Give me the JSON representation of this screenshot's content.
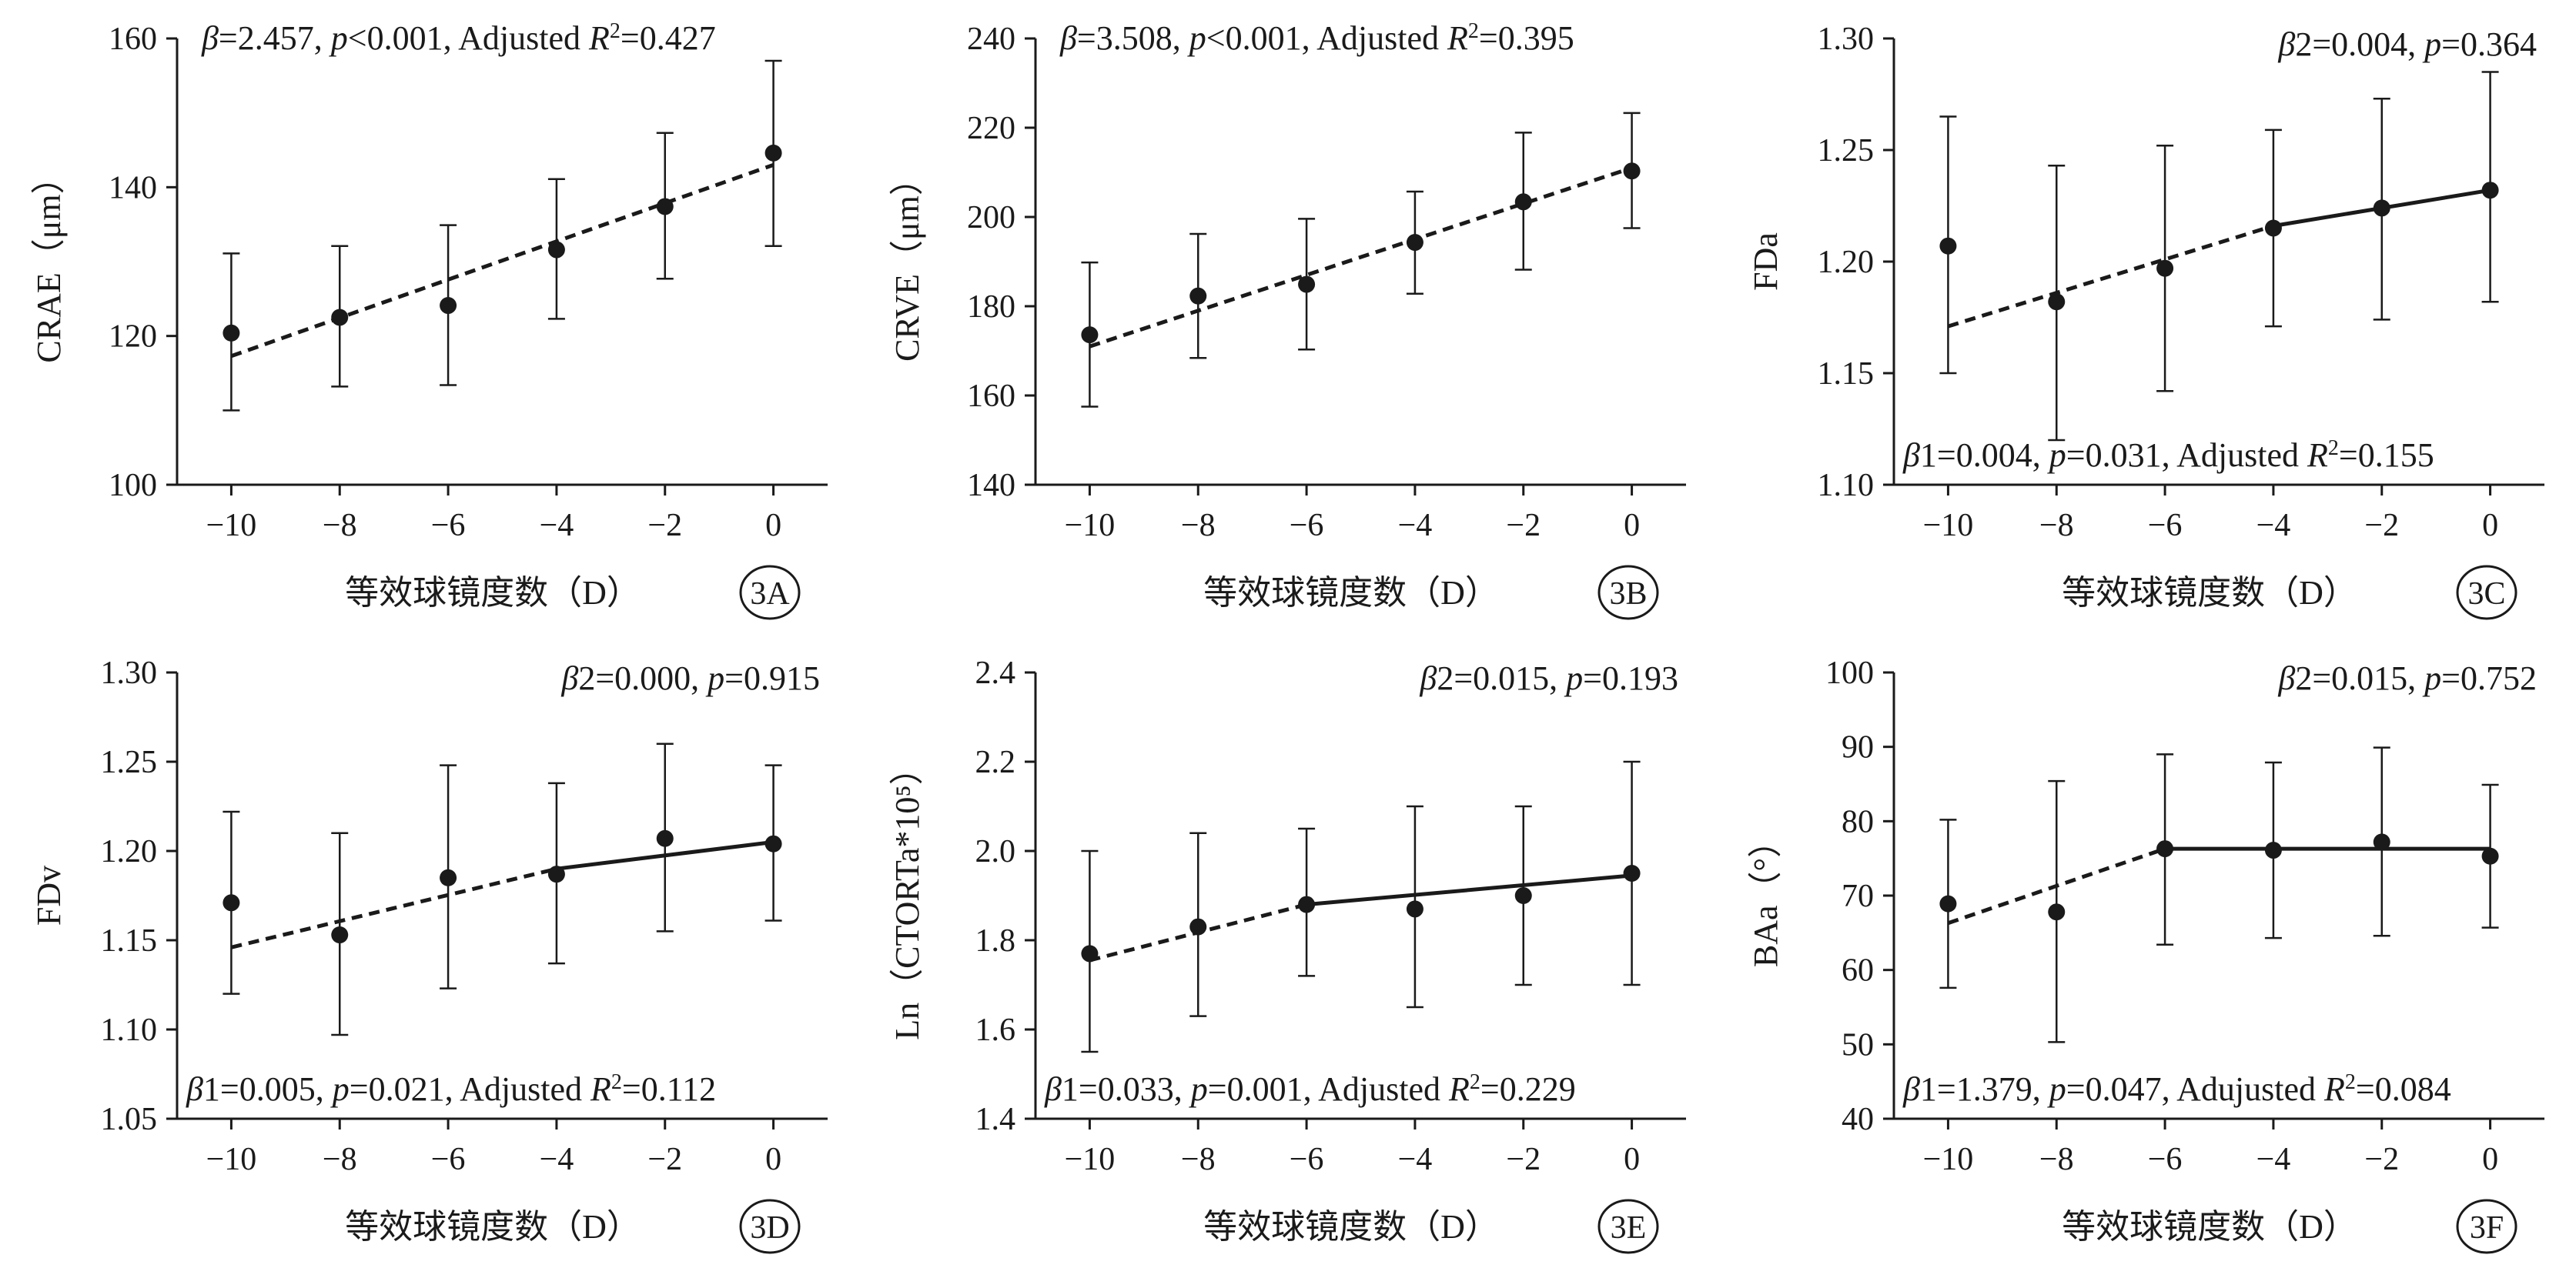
{
  "figure": {
    "background": "#ffffff",
    "ink_color": "#1a1a1a"
  },
  "chart_data": [
    {
      "id": "3A",
      "type": "scatter",
      "title": "",
      "xlabel": "等效球镜度数（D）",
      "ylabel": "CRAE（μm）",
      "xlim": [
        -11,
        1
      ],
      "ylim": [
        100,
        160
      ],
      "xticks": [
        -10,
        -8,
        -6,
        -4,
        -2,
        0
      ],
      "xtick_labels": [
        "−10",
        "−8",
        "−6",
        "−4",
        "−2",
        "0"
      ],
      "yticks": [
        100,
        120,
        140,
        160
      ],
      "ytick_labels": [
        "100",
        "120",
        "140",
        "160"
      ],
      "grid": false,
      "series": [
        {
          "x": [
            -10,
            -8,
            -6,
            -4,
            -2,
            0
          ],
          "y": [
            120.4,
            122.5,
            124.1,
            131.6,
            137.4,
            144.6
          ],
          "err_low": [
            110.0,
            113.2,
            113.4,
            122.3,
            127.7,
            132.1
          ],
          "err_high": [
            131.1,
            132.1,
            134.9,
            141.1,
            147.3,
            157.0
          ]
        }
      ],
      "fits": [
        {
          "style": "dashed",
          "x": [
            -10,
            0
          ],
          "y": [
            117.3,
            143.0
          ]
        }
      ],
      "annotations": [
        {
          "text": "β=2.457, p<0.001, Adjusted R²=0.427",
          "position": "top-left"
        }
      ]
    },
    {
      "id": "3B",
      "type": "scatter",
      "title": "",
      "xlabel": "等效球镜度数（D）",
      "ylabel": "CRVE（μm）",
      "xlim": [
        -11,
        1
      ],
      "ylim": [
        140,
        240
      ],
      "xticks": [
        -10,
        -8,
        -6,
        -4,
        -2,
        0
      ],
      "xtick_labels": [
        "−10",
        "−8",
        "−6",
        "−4",
        "−2",
        "0"
      ],
      "yticks": [
        140,
        160,
        180,
        200,
        220,
        240
      ],
      "ytick_labels": [
        "140",
        "160",
        "180",
        "200",
        "220",
        "240"
      ],
      "grid": false,
      "series": [
        {
          "x": [
            -10,
            -8,
            -6,
            -4,
            -2,
            0
          ],
          "y": [
            173.6,
            182.3,
            184.9,
            194.3,
            203.4,
            210.3
          ],
          "err_low": [
            157.5,
            168.4,
            170.3,
            182.8,
            188.2,
            197.5
          ],
          "err_high": [
            189.8,
            196.2,
            199.6,
            205.7,
            218.9,
            223.3
          ]
        }
      ],
      "fits": [
        {
          "style": "dashed",
          "x": [
            -10,
            0
          ],
          "y": [
            171.0,
            211.0
          ]
        }
      ],
      "annotations": [
        {
          "text": "β=3.508, p<0.001, Adjusted R²=0.395",
          "position": "top-left"
        }
      ]
    },
    {
      "id": "3C",
      "type": "scatter",
      "title": "",
      "xlabel": "等效球镜度数（D）",
      "ylabel": "FDa",
      "xlim": [
        -11,
        1
      ],
      "ylim": [
        1.1,
        1.3
      ],
      "xticks": [
        -10,
        -8,
        -6,
        -4,
        -2,
        0
      ],
      "xtick_labels": [
        "−10",
        "−8",
        "−6",
        "−4",
        "−2",
        "0"
      ],
      "yticks": [
        1.1,
        1.15,
        1.2,
        1.25,
        1.3
      ],
      "ytick_labels": [
        "1.10",
        "1.15",
        "1.20",
        "1.25",
        "1.30"
      ],
      "grid": false,
      "series": [
        {
          "x": [
            -10,
            -8,
            -6,
            -4,
            -2,
            0
          ],
          "y": [
            1.207,
            1.182,
            1.197,
            1.215,
            1.224,
            1.232
          ],
          "err_low": [
            1.15,
            1.12,
            1.142,
            1.171,
            1.174,
            1.182
          ],
          "err_high": [
            1.265,
            1.243,
            1.252,
            1.259,
            1.273,
            1.285
          ]
        }
      ],
      "fits": [
        {
          "style": "dashed",
          "x": [
            -10,
            -4
          ],
          "y": [
            1.171,
            1.216
          ]
        },
        {
          "style": "solid",
          "x": [
            -4,
            0
          ],
          "y": [
            1.216,
            1.232
          ]
        }
      ],
      "annotations": [
        {
          "text": "β2=0.004, p=0.364",
          "position": "top-right"
        },
        {
          "text": "β1=0.004, p=0.031, Adjusted R²=0.155",
          "position": "bottom-left"
        }
      ]
    },
    {
      "id": "3D",
      "type": "scatter",
      "title": "",
      "xlabel": "等效球镜度数（D）",
      "ylabel": "FDv",
      "xlim": [
        -11,
        1
      ],
      "ylim": [
        1.05,
        1.3
      ],
      "xticks": [
        -10,
        -8,
        -6,
        -4,
        -2,
        0
      ],
      "xtick_labels": [
        "−10",
        "−8",
        "−6",
        "−4",
        "−2",
        "0"
      ],
      "yticks": [
        1.05,
        1.1,
        1.15,
        1.2,
        1.25,
        1.3
      ],
      "ytick_labels": [
        "1.05",
        "1.10",
        "1.15",
        "1.20",
        "1.25",
        "1.30"
      ],
      "grid": false,
      "series": [
        {
          "x": [
            -10,
            -8,
            -6,
            -4,
            -2,
            0
          ],
          "y": [
            1.171,
            1.153,
            1.185,
            1.187,
            1.207,
            1.204
          ],
          "err_low": [
            1.12,
            1.097,
            1.123,
            1.137,
            1.155,
            1.161
          ],
          "err_high": [
            1.222,
            1.21,
            1.248,
            1.238,
            1.26,
            1.248
          ]
        }
      ],
      "fits": [
        {
          "style": "dashed",
          "x": [
            -10,
            -4
          ],
          "y": [
            1.146,
            1.19
          ]
        },
        {
          "style": "solid",
          "x": [
            -4,
            0
          ],
          "y": [
            1.19,
            1.205
          ]
        }
      ],
      "annotations": [
        {
          "text": "β2=0.000, p=0.915",
          "position": "top-right"
        },
        {
          "text": "β1=0.005, p=0.021, Adjusted R²=0.112",
          "position": "bottom-left"
        }
      ]
    },
    {
      "id": "3E",
      "type": "scatter",
      "title": "",
      "xlabel": "等效球镜度数（D）",
      "ylabel": "Ln（CTORTa*10⁵）",
      "xlim": [
        -11,
        1
      ],
      "ylim": [
        1.4,
        2.4
      ],
      "xticks": [
        -10,
        -8,
        -6,
        -4,
        -2,
        0
      ],
      "xtick_labels": [
        "−10",
        "−8",
        "−6",
        "−4",
        "−2",
        "0"
      ],
      "yticks": [
        1.4,
        1.6,
        1.8,
        2.0,
        2.2,
        2.4
      ],
      "ytick_labels": [
        "1.4",
        "1.6",
        "1.8",
        "2.0",
        "2.2",
        "2.4"
      ],
      "grid": false,
      "series": [
        {
          "x": [
            -10,
            -8,
            -6,
            -4,
            -2,
            0
          ],
          "y": [
            1.77,
            1.83,
            1.88,
            1.87,
            1.9,
            1.95
          ],
          "err_low": [
            1.55,
            1.63,
            1.72,
            1.65,
            1.7,
            1.7
          ],
          "err_high": [
            2.0,
            2.04,
            2.05,
            2.1,
            2.1,
            2.2
          ]
        }
      ],
      "fits": [
        {
          "style": "dashed",
          "x": [
            -10,
            -6
          ],
          "y": [
            1.755,
            1.88
          ]
        },
        {
          "style": "solid",
          "x": [
            -6,
            0
          ],
          "y": [
            1.88,
            1.945
          ]
        }
      ],
      "annotations": [
        {
          "text": "β2=0.015, p=0.193",
          "position": "top-right"
        },
        {
          "text": "β1=0.033, p=0.001, Adjusted R²=0.229",
          "position": "bottom-left"
        }
      ]
    },
    {
      "id": "3F",
      "type": "scatter",
      "title": "",
      "xlabel": "等效球镜度数（D）",
      "ylabel": "BAa（°）",
      "xlim": [
        -11,
        1
      ],
      "ylim": [
        40,
        100
      ],
      "xticks": [
        -10,
        -8,
        -6,
        -4,
        -2,
        0
      ],
      "xtick_labels": [
        "−10",
        "−8",
        "−6",
        "−4",
        "−2",
        "0"
      ],
      "yticks": [
        40,
        50,
        60,
        70,
        80,
        90,
        100
      ],
      "ytick_labels": [
        "40",
        "50",
        "60",
        "70",
        "80",
        "90",
        "100"
      ],
      "grid": false,
      "series": [
        {
          "x": [
            -10,
            -8,
            -6,
            -4,
            -2,
            0
          ],
          "y": [
            68.9,
            67.8,
            76.3,
            76.1,
            77.2,
            75.3
          ],
          "err_low": [
            57.6,
            50.3,
            63.4,
            64.3,
            64.6,
            65.7
          ],
          "err_high": [
            80.2,
            85.4,
            89.0,
            87.9,
            89.9,
            84.9
          ]
        }
      ],
      "fits": [
        {
          "style": "dashed",
          "x": [
            -10,
            -6
          ],
          "y": [
            66.3,
            76.3
          ]
        },
        {
          "style": "solid",
          "x": [
            -6,
            0
          ],
          "y": [
            76.3,
            76.3
          ]
        }
      ],
      "annotations": [
        {
          "text": "β2=0.015, p=0.752",
          "position": "top-right"
        },
        {
          "text": "β1=1.379, p=0.047, Adujusted R²=0.084",
          "position": "bottom-left"
        }
      ]
    }
  ]
}
